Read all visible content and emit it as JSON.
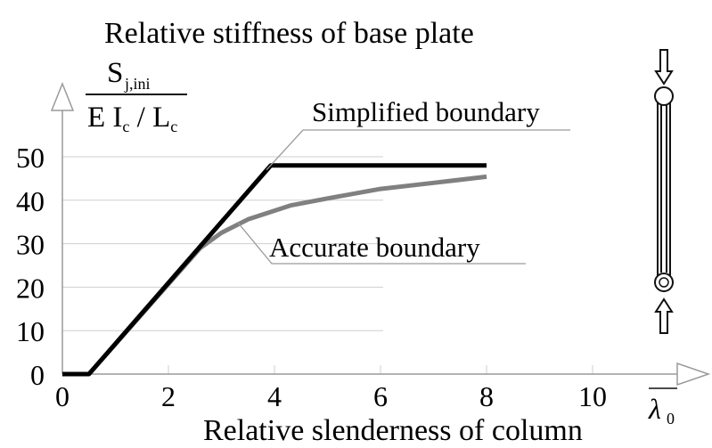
{
  "chart_data": {
    "type": "line",
    "title": "Relative stiffness of base plate",
    "ylabel": {
      "numerator": "S",
      "numerator_sub": "j,ini",
      "denominator_parts": [
        "E I",
        "c",
        " / L",
        "c"
      ]
    },
    "xlabel": "Relative slenderness of column",
    "x_axis_symbol": "λ",
    "x_axis_symbol_sub": "0",
    "xlim": [
      0,
      10
    ],
    "ylim": [
      0,
      50
    ],
    "xticks": [
      "0",
      "2",
      "4",
      "6",
      "8",
      "10"
    ],
    "yticks": [
      "0",
      "10",
      "20",
      "30",
      "40",
      "50"
    ],
    "grid": true,
    "series": [
      {
        "name": "Simplified boundary",
        "color": "#000000",
        "points": [
          [
            0,
            0
          ],
          [
            0.5,
            0
          ],
          [
            3.93,
            48
          ],
          [
            8,
            48
          ]
        ]
      },
      {
        "name": "Accurate boundary",
        "color": "#808080",
        "points": [
          [
            0.5,
            0
          ],
          [
            2.6,
            29
          ],
          [
            3,
            32.5
          ],
          [
            3.5,
            35.6
          ],
          [
            4.3,
            38.8
          ],
          [
            5.0,
            40.4
          ],
          [
            6.0,
            42.6
          ],
          [
            7.0,
            44.0
          ],
          [
            8.0,
            45.4
          ]
        ]
      }
    ],
    "annotations": [
      {
        "text": "Simplified boundary",
        "series": 0
      },
      {
        "text": "Accurate boundary",
        "series": 1
      }
    ]
  },
  "icons": {
    "column_diagram": "pinned-column-icon"
  }
}
